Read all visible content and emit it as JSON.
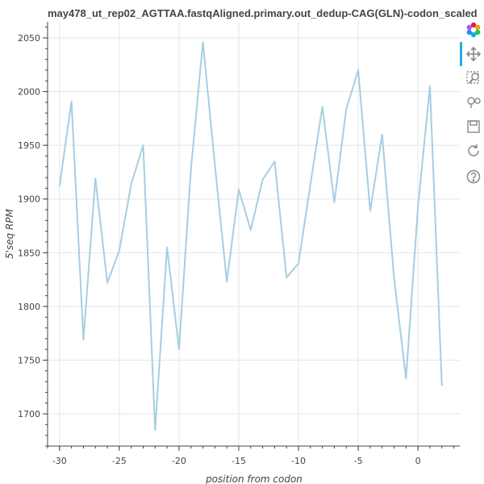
{
  "chart_data": {
    "type": "line",
    "title": "may478_ut_rep02_AGTTAA.fastqAligned.primary.out_dedup-CAG(GLN)-codon_scaled",
    "xlabel": "position from codon",
    "ylabel": "5'seq RPM",
    "xlim": [
      -31,
      3.5
    ],
    "ylim": [
      1670,
      2065
    ],
    "x_ticks": [
      -30,
      -25,
      -20,
      -15,
      -10,
      -5,
      0
    ],
    "x_tick_labels": [
      "-30",
      "-25",
      "-20",
      "-15",
      "-10",
      "-5",
      "0"
    ],
    "y_ticks": [
      1700,
      1750,
      1800,
      1850,
      1900,
      1950,
      2000,
      2050
    ],
    "y_tick_labels": [
      "1700",
      "1750",
      "1800",
      "1850",
      "1900",
      "1950",
      "2000",
      "2050"
    ],
    "grid": true,
    "line_color": "#a6cee3",
    "series": [
      {
        "x": [
          -30,
          -29,
          -28,
          -27,
          -26,
          -25,
          -24,
          -23,
          -22,
          -21,
          -20,
          -19,
          -18,
          -17,
          -16,
          -15,
          -14,
          -13,
          -12,
          -11,
          -10,
          -9,
          -8,
          -7,
          -6,
          -5,
          -4,
          -3,
          -2,
          -1,
          0,
          1,
          2
        ],
        "values": [
          1912,
          1991,
          1769,
          1919,
          1822,
          1852,
          1914,
          1950,
          1685,
          1855,
          1760,
          1928,
          2046,
          1932,
          1823,
          1909,
          1871,
          1918,
          1935,
          1827,
          1840,
          1914,
          1986,
          1897,
          1984,
          2020,
          1889,
          1960,
          1826,
          1733,
          1893,
          2005,
          1726
        ]
      }
    ]
  },
  "toolbar": {
    "tools": [
      {
        "name": "bokeh-logo-icon"
      },
      {
        "name": "pan-tool-icon"
      },
      {
        "name": "box-zoom-tool-icon"
      },
      {
        "name": "wheel-zoom-tool-icon"
      },
      {
        "name": "save-tool-icon"
      },
      {
        "name": "reset-tool-icon"
      },
      {
        "name": "help-tool-icon"
      }
    ]
  }
}
